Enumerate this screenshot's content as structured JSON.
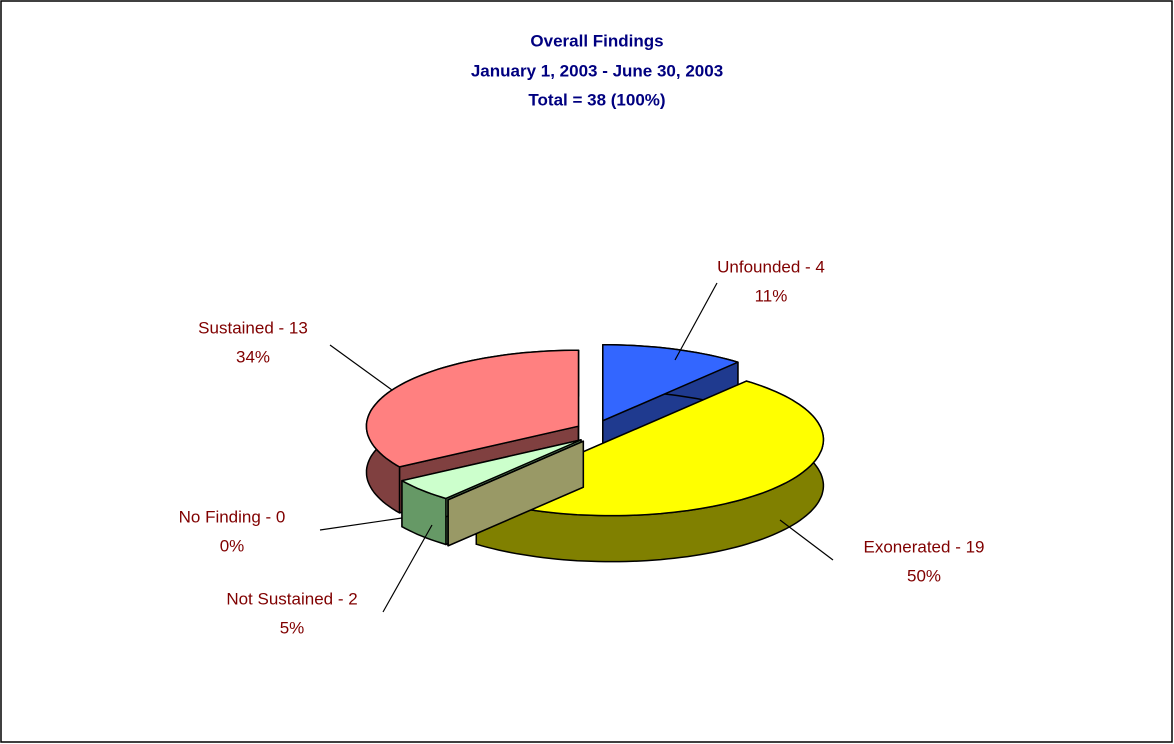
{
  "chart_data": {
    "type": "pie3d",
    "title": [
      "Overall Findings",
      "January 1, 2003 - June 30, 2003",
      "Total = 38 (100%)"
    ],
    "categories": [
      "Unfounded - 4",
      "Exonerated - 19",
      "No Finding - 0",
      "Not Sustained - 2",
      "Sustained - 13"
    ],
    "values": [
      11,
      50,
      0,
      5,
      34
    ],
    "value_labels": [
      "11%",
      "50%",
      "0%",
      "5%",
      "34%"
    ],
    "colors": [
      "#3366ff",
      "#ffff00",
      "#ffffcc",
      "#ccffcc",
      "#ff8080"
    ],
    "side_colors": [
      "#1f3a8f",
      "#808000",
      "#999966",
      "#669966",
      "#804040"
    ]
  }
}
